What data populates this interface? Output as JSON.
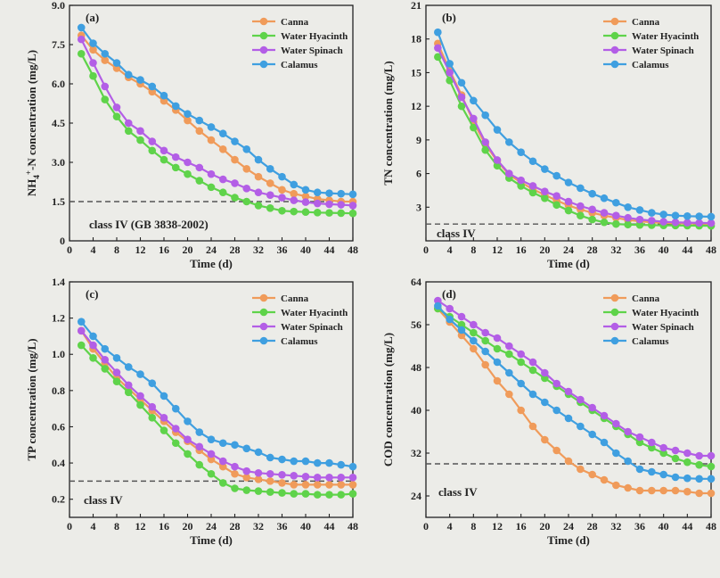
{
  "colors": {
    "Canna": "#f09b5a",
    "Water Hyacinth": "#5fd34a",
    "Water Spinach": "#b35ee6",
    "Calamus": "#3f9fe0"
  },
  "chart_data": [
    {
      "type": "line",
      "panel_label": "(a)",
      "xlabel": "Time (d)",
      "ylabel": "NH4+-N concentration (mg/L)",
      "ylabel_parts": [
        "NH",
        "4",
        "+",
        "-N concentration (mg/L)"
      ],
      "xlim": [
        0,
        48
      ],
      "ylim": [
        0,
        9
      ],
      "xticks": [
        0,
        4,
        8,
        12,
        16,
        20,
        24,
        28,
        32,
        36,
        40,
        44,
        48
      ],
      "yticks": [
        1.5,
        3.0,
        4.5,
        6.0,
        7.5,
        9.0
      ],
      "ytick_labels": [
        "1.5",
        "3.0",
        "4.5",
        "6.0",
        "7.5",
        "9.0"
      ],
      "reference_line": 1.5,
      "reference_label": "class IV (GB 3838-2002)",
      "x": [
        2,
        4,
        6,
        8,
        10,
        12,
        14,
        16,
        18,
        20,
        22,
        24,
        26,
        28,
        30,
        32,
        34,
        36,
        38,
        40,
        42,
        44,
        46,
        48
      ],
      "series": [
        {
          "name": "Canna",
          "values": [
            7.85,
            7.3,
            6.9,
            6.6,
            6.25,
            6.0,
            5.7,
            5.35,
            5.0,
            4.6,
            4.2,
            3.85,
            3.5,
            3.1,
            2.75,
            2.45,
            2.2,
            1.95,
            1.8,
            1.7,
            1.6,
            1.55,
            1.5,
            1.5
          ]
        },
        {
          "name": "Water Hyacinth",
          "values": [
            7.15,
            6.3,
            5.4,
            4.75,
            4.2,
            3.85,
            3.45,
            3.1,
            2.8,
            2.55,
            2.3,
            2.05,
            1.85,
            1.65,
            1.5,
            1.35,
            1.25,
            1.15,
            1.12,
            1.1,
            1.08,
            1.07,
            1.06,
            1.05
          ]
        },
        {
          "name": "Water Spinach",
          "values": [
            7.7,
            6.8,
            5.9,
            5.1,
            4.5,
            4.2,
            3.8,
            3.45,
            3.2,
            3.0,
            2.8,
            2.55,
            2.35,
            2.2,
            2.0,
            1.85,
            1.75,
            1.65,
            1.55,
            1.48,
            1.43,
            1.4,
            1.38,
            1.35
          ]
        },
        {
          "name": "Calamus",
          "values": [
            8.15,
            7.55,
            7.15,
            6.8,
            6.35,
            6.15,
            5.9,
            5.55,
            5.15,
            4.85,
            4.6,
            4.35,
            4.1,
            3.8,
            3.5,
            3.1,
            2.75,
            2.45,
            2.15,
            1.95,
            1.85,
            1.82,
            1.8,
            1.78
          ]
        }
      ]
    },
    {
      "type": "line",
      "panel_label": "(b)",
      "xlabel": "Time (d)",
      "ylabel": "TN concentration (mg/L)",
      "xlim": [
        0,
        48
      ],
      "ylim": [
        0,
        21
      ],
      "xticks": [
        0,
        4,
        8,
        12,
        16,
        20,
        24,
        28,
        32,
        36,
        40,
        44,
        48
      ],
      "yticks": [
        3,
        6,
        9,
        12,
        15,
        18,
        21
      ],
      "ytick_labels": [
        "3",
        "6",
        "9",
        "12",
        "15",
        "18",
        "21"
      ],
      "reference_line": 1.5,
      "reference_label": "class IV",
      "x": [
        2,
        4,
        6,
        8,
        10,
        12,
        14,
        16,
        18,
        20,
        22,
        24,
        26,
        28,
        30,
        32,
        34,
        36,
        38,
        40,
        42,
        44,
        46,
        48
      ],
      "series": [
        {
          "name": "Canna",
          "values": [
            17.6,
            15.2,
            13.0,
            10.6,
            8.6,
            7.1,
            5.9,
            5.2,
            4.6,
            4.1,
            3.6,
            3.15,
            2.8,
            2.5,
            2.25,
            2.05,
            1.85,
            1.75,
            1.65,
            1.6,
            1.57,
            1.55,
            1.53,
            1.52
          ]
        },
        {
          "name": "Water Hyacinth",
          "values": [
            16.4,
            14.3,
            12.0,
            10.1,
            8.1,
            6.7,
            5.6,
            4.9,
            4.3,
            3.8,
            3.2,
            2.7,
            2.25,
            1.9,
            1.65,
            1.5,
            1.45,
            1.42,
            1.4,
            1.38,
            1.37,
            1.36,
            1.35,
            1.34
          ]
        },
        {
          "name": "Water Spinach",
          "values": [
            17.2,
            15.0,
            12.8,
            10.9,
            8.8,
            7.2,
            6.0,
            5.4,
            4.9,
            4.4,
            4.0,
            3.5,
            3.1,
            2.8,
            2.5,
            2.25,
            2.05,
            1.9,
            1.8,
            1.7,
            1.65,
            1.62,
            1.6,
            1.58
          ]
        },
        {
          "name": "Calamus",
          "values": [
            18.6,
            15.8,
            14.1,
            12.5,
            11.2,
            9.9,
            8.8,
            7.9,
            7.1,
            6.4,
            5.8,
            5.2,
            4.7,
            4.2,
            3.8,
            3.4,
            3.0,
            2.75,
            2.5,
            2.35,
            2.25,
            2.2,
            2.18,
            2.15
          ]
        }
      ]
    },
    {
      "type": "line",
      "panel_label": "(c)",
      "xlabel": "Time (d)",
      "ylabel": "TP concentration (mg/L)",
      "xlim": [
        0,
        48
      ],
      "ylim": [
        0.1,
        1.4
      ],
      "xticks": [
        0,
        4,
        8,
        12,
        16,
        20,
        24,
        28,
        32,
        36,
        40,
        44,
        48
      ],
      "yticks": [
        0.2,
        0.4,
        0.6,
        0.8,
        1.0,
        1.2,
        1.4
      ],
      "ytick_labels": [
        "0.2",
        "0.4",
        "0.6",
        "0.8",
        "1.0",
        "1.2",
        "1.4"
      ],
      "reference_line": 0.3,
      "reference_label": "class IV",
      "x": [
        2,
        4,
        6,
        8,
        10,
        12,
        14,
        16,
        18,
        20,
        22,
        24,
        26,
        28,
        30,
        32,
        34,
        36,
        38,
        40,
        42,
        44,
        46,
        48
      ],
      "series": [
        {
          "name": "Canna",
          "values": [
            1.13,
            1.03,
            0.95,
            0.87,
            0.81,
            0.75,
            0.69,
            0.63,
            0.57,
            0.52,
            0.47,
            0.42,
            0.38,
            0.34,
            0.32,
            0.31,
            0.3,
            0.29,
            0.28,
            0.28,
            0.28,
            0.28,
            0.28,
            0.28
          ]
        },
        {
          "name": "Water Hyacinth",
          "values": [
            1.05,
            0.98,
            0.92,
            0.85,
            0.79,
            0.72,
            0.65,
            0.58,
            0.51,
            0.45,
            0.39,
            0.34,
            0.29,
            0.26,
            0.25,
            0.245,
            0.24,
            0.235,
            0.23,
            0.23,
            0.225,
            0.225,
            0.225,
            0.23
          ]
        },
        {
          "name": "Water Spinach",
          "values": [
            1.13,
            1.05,
            0.97,
            0.9,
            0.83,
            0.77,
            0.71,
            0.65,
            0.59,
            0.53,
            0.49,
            0.45,
            0.41,
            0.38,
            0.355,
            0.345,
            0.34,
            0.335,
            0.33,
            0.325,
            0.32,
            0.32,
            0.32,
            0.32
          ]
        },
        {
          "name": "Calamus",
          "values": [
            1.18,
            1.1,
            1.03,
            0.98,
            0.93,
            0.89,
            0.84,
            0.77,
            0.7,
            0.63,
            0.57,
            0.53,
            0.51,
            0.5,
            0.48,
            0.46,
            0.43,
            0.42,
            0.41,
            0.41,
            0.4,
            0.4,
            0.39,
            0.38
          ]
        }
      ]
    },
    {
      "type": "line",
      "panel_label": "(d)",
      "xlabel": "Time (d)",
      "ylabel": "COD concentration (mg/L)",
      "xlim": [
        0,
        48
      ],
      "ylim": [
        20,
        64
      ],
      "xticks": [
        0,
        4,
        8,
        12,
        16,
        20,
        24,
        28,
        32,
        36,
        40,
        44,
        48
      ],
      "yticks": [
        24,
        32,
        40,
        48,
        56,
        64
      ],
      "ytick_labels": [
        "24",
        "32",
        "40",
        "48",
        "56",
        "64"
      ],
      "reference_line": 30,
      "reference_label": "class IV",
      "x": [
        2,
        4,
        6,
        8,
        10,
        12,
        14,
        16,
        18,
        20,
        22,
        24,
        26,
        28,
        30,
        32,
        34,
        36,
        38,
        40,
        42,
        44,
        46,
        48
      ],
      "series": [
        {
          "name": "Canna",
          "values": [
            59.0,
            56.5,
            54.0,
            51.5,
            48.5,
            45.5,
            43.0,
            40.0,
            37.0,
            34.5,
            32.5,
            30.5,
            29.0,
            28.0,
            27.0,
            26.0,
            25.5,
            25.0,
            25.0,
            25.0,
            25.0,
            24.8,
            24.5,
            24.5
          ]
        },
        {
          "name": "Water Hyacinth",
          "values": [
            59.0,
            57.5,
            56.0,
            54.5,
            53.0,
            51.5,
            50.5,
            49.0,
            47.5,
            46.0,
            44.5,
            43.0,
            41.5,
            40.0,
            38.5,
            37.0,
            35.5,
            34.0,
            33.0,
            32.0,
            31.0,
            30.3,
            29.8,
            29.5
          ]
        },
        {
          "name": "Water Spinach",
          "values": [
            60.5,
            59.0,
            57.5,
            56.0,
            54.5,
            53.5,
            52.0,
            50.5,
            49.0,
            47.0,
            45.0,
            43.5,
            42.0,
            40.5,
            39.0,
            37.5,
            36.0,
            35.0,
            34.0,
            33.0,
            32.5,
            32.0,
            31.5,
            31.5
          ]
        },
        {
          "name": "Calamus",
          "values": [
            59.5,
            57.0,
            55.0,
            53.0,
            51.0,
            49.0,
            47.0,
            45.0,
            43.0,
            41.5,
            40.0,
            38.5,
            37.0,
            35.5,
            34.0,
            32.0,
            30.5,
            29.0,
            28.5,
            28.0,
            27.5,
            27.3,
            27.2,
            27.2
          ]
        }
      ]
    }
  ]
}
